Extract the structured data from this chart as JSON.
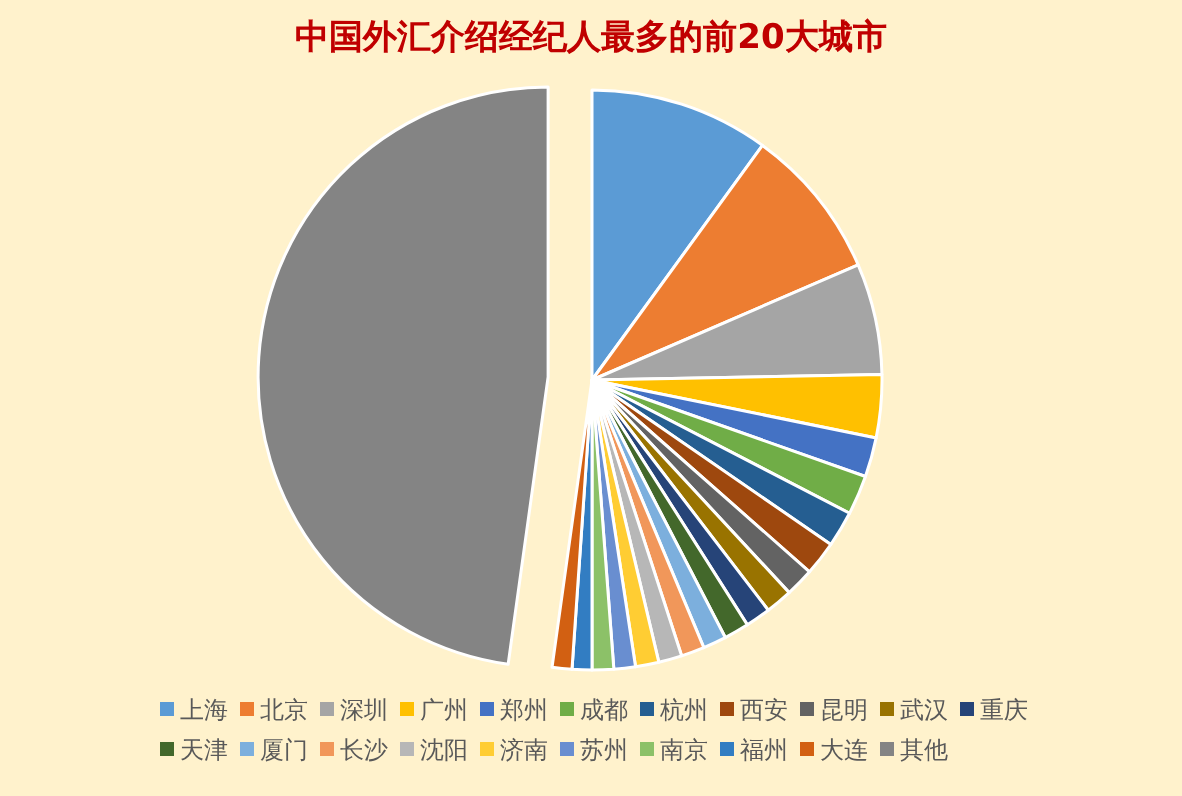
{
  "chart_data": {
    "type": "pie",
    "title": "中国外汇介绍经纪人最多的前20大城市",
    "categories": [
      "上海",
      "北京",
      "深圳",
      "广州",
      "郑州",
      "成都",
      "杭州",
      "西安",
      "昆明",
      "武汉",
      "重庆",
      "天津",
      "厦门",
      "长沙",
      "沈阳",
      "济南",
      "苏州",
      "南京",
      "福州",
      "大连",
      "其他"
    ],
    "values": [
      10,
      8.5,
      6.2,
      3.5,
      2.2,
      2.2,
      2.0,
      1.9,
      1.6,
      1.5,
      1.4,
      1.4,
      1.3,
      1.3,
      1.3,
      1.3,
      1.2,
      1.2,
      1.1,
      1.1,
      47.8
    ],
    "colors": [
      "#5b9bd5",
      "#ed7d31",
      "#a5a5a5",
      "#ffc000",
      "#4472c4",
      "#70ad47",
      "#255e91",
      "#9e480e",
      "#636363",
      "#997300",
      "#264478",
      "#43682b",
      "#7cafdd",
      "#f1975a",
      "#b7b7b7",
      "#ffcd33",
      "#698ed0",
      "#8cc168",
      "#327dc2",
      "#d26012",
      "#848484"
    ],
    "legend": "bottom"
  }
}
